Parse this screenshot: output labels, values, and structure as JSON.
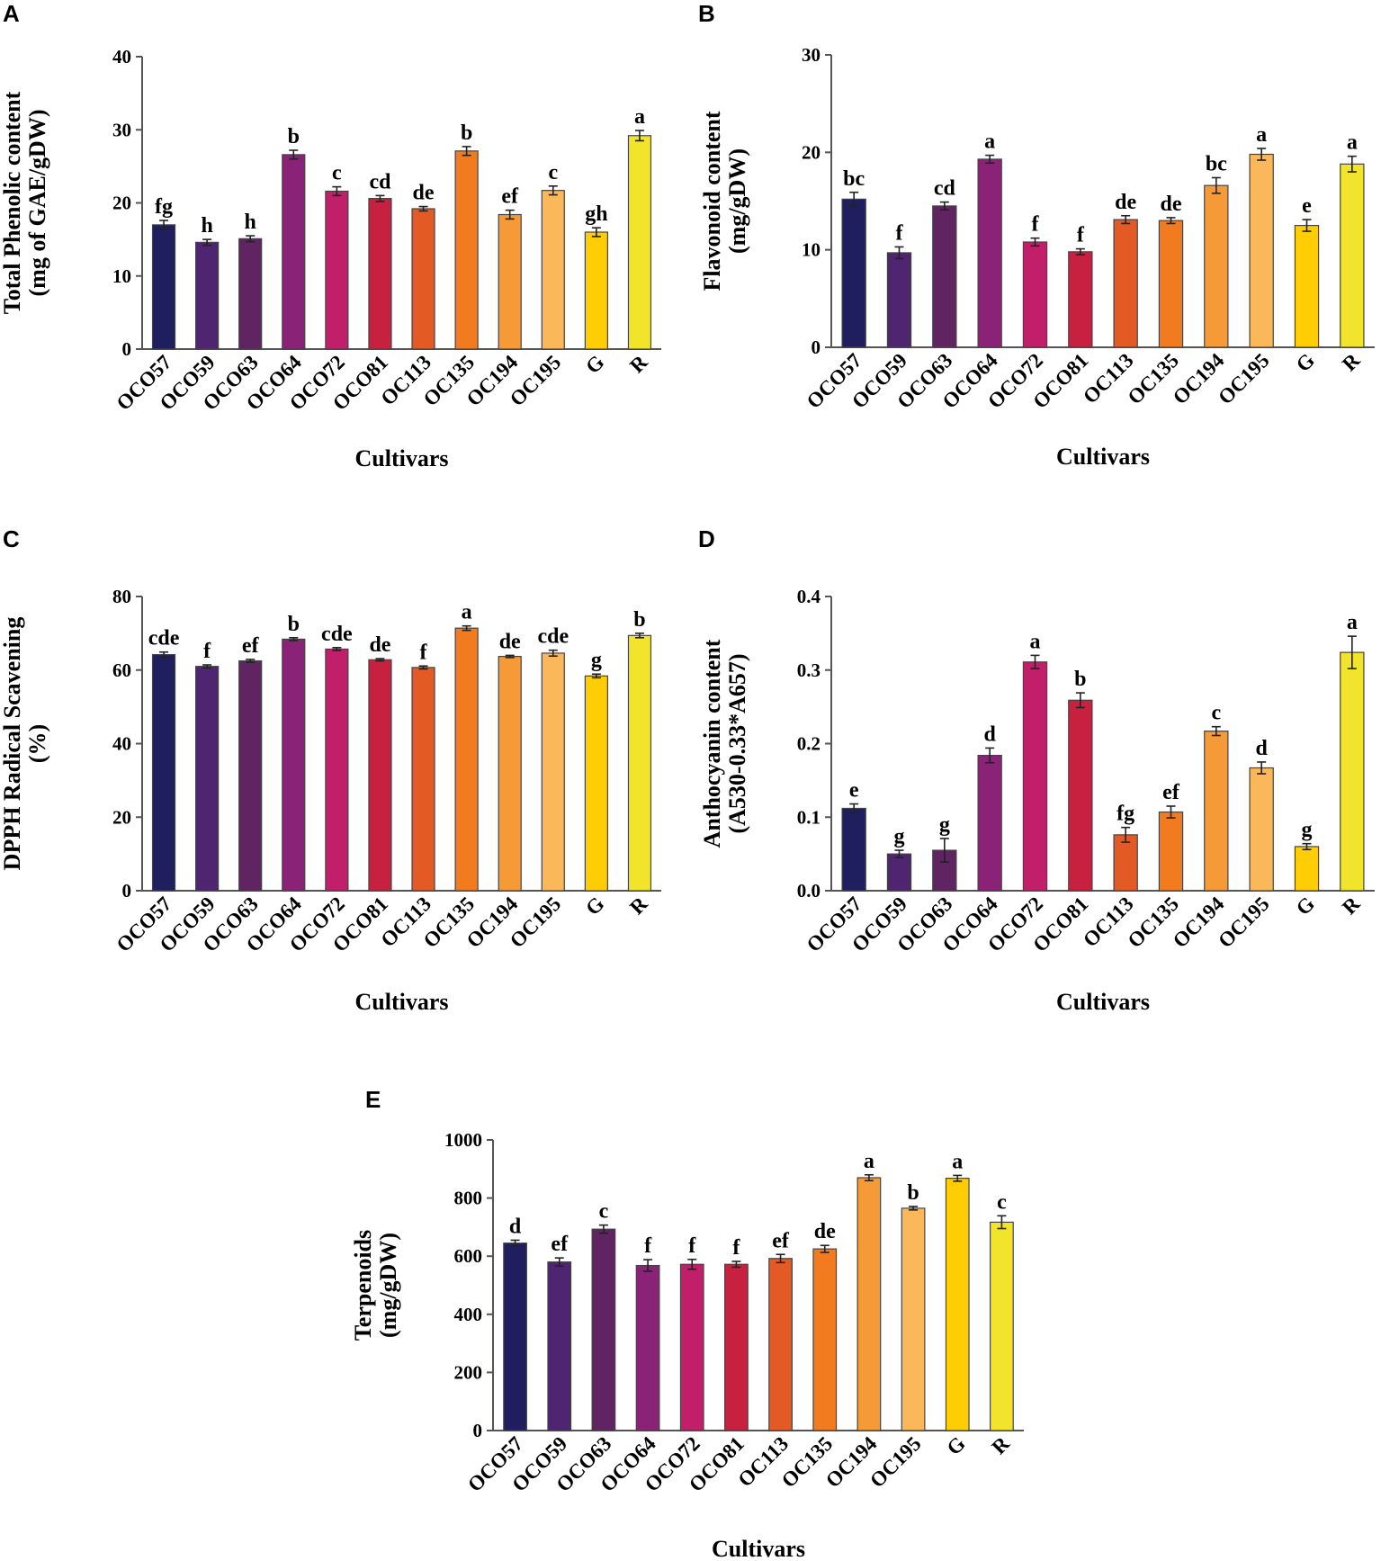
{
  "colors": [
    "#1f1f5f",
    "#4f2470",
    "#5f2461",
    "#8a2378",
    "#c21f6b",
    "#c7213f",
    "#e45a24",
    "#f27b20",
    "#f69a38",
    "#fbb85a",
    "#ffcd03",
    "#f2e42b"
  ],
  "chart_data": [
    {
      "panel": "A",
      "type": "bar",
      "categories": [
        "OCO57",
        "OCO59",
        "OCO63",
        "OCO64",
        "OCO72",
        "OCO81",
        "OC113",
        "OC135",
        "OC194",
        "OC195",
        "G",
        "R"
      ],
      "values": [
        17.0,
        14.6,
        15.1,
        26.6,
        21.6,
        20.6,
        19.2,
        27.1,
        18.4,
        21.7,
        16.0,
        29.2
      ],
      "errors": [
        0.6,
        0.4,
        0.4,
        0.6,
        0.6,
        0.4,
        0.3,
        0.6,
        0.6,
        0.6,
        0.6,
        0.7
      ],
      "letters": [
        "fg",
        "h",
        "h",
        "b",
        "c",
        "cd",
        "de",
        "b",
        "ef",
        "c",
        "gh",
        "a"
      ],
      "ylabel_line1": "Total Phenolic content",
      "ylabel_line2": "(mg of GAE/gDW)",
      "xlabel": "Cultivars",
      "ylim": [
        0,
        40
      ],
      "yticks": [
        "0",
        "10",
        "20",
        "30",
        "40"
      ]
    },
    {
      "panel": "B",
      "type": "bar",
      "categories": [
        "OCO57",
        "OCO59",
        "OCO63",
        "OCO64",
        "OCO72",
        "OCO81",
        "OC113",
        "OC135",
        "OC194",
        "OC195",
        "G",
        "R"
      ],
      "values": [
        15.2,
        9.7,
        14.5,
        19.3,
        10.8,
        9.8,
        13.1,
        13.0,
        16.6,
        19.8,
        12.5,
        18.8
      ],
      "errors": [
        0.7,
        0.6,
        0.4,
        0.4,
        0.4,
        0.3,
        0.4,
        0.3,
        0.8,
        0.6,
        0.6,
        0.8
      ],
      "letters": [
        "bc",
        "f",
        "cd",
        "a",
        "f",
        "f",
        "de",
        "de",
        "bc",
        "a",
        "e",
        "a"
      ],
      "ylabel_line1": "Flavonoid content",
      "ylabel_line2": "(mg/gDW)",
      "xlabel": "Cultivars",
      "ylim": [
        0,
        30
      ],
      "yticks": [
        "0",
        "10",
        "20",
        "30"
      ]
    },
    {
      "panel": "C",
      "type": "bar",
      "categories": [
        "OCO57",
        "OCO59",
        "OCO63",
        "OCO64",
        "OCO72",
        "OCO81",
        "OC113",
        "OC135",
        "OC194",
        "OC195",
        "G",
        "R"
      ],
      "values": [
        64.2,
        61.0,
        62.5,
        68.4,
        65.7,
        62.8,
        60.7,
        71.4,
        63.7,
        64.6,
        58.4,
        69.4
      ],
      "errors": [
        0.7,
        0.4,
        0.4,
        0.4,
        0.4,
        0.3,
        0.4,
        0.6,
        0.3,
        0.8,
        0.5,
        0.6
      ],
      "letters": [
        "cde",
        "f",
        "ef",
        "b",
        "cde",
        "de",
        "f",
        "a",
        "de",
        "cde",
        "g",
        "b"
      ],
      "ylabel_line1": "DPPH Radical Scavening",
      "ylabel_line2": "(%)",
      "xlabel": "Cultivars",
      "ylim": [
        0,
        80
      ],
      "yticks": [
        "0",
        "20",
        "40",
        "60",
        "80"
      ]
    },
    {
      "panel": "D",
      "type": "bar",
      "categories": [
        "OCO57",
        "OCO59",
        "OCO63",
        "OCO64",
        "OCO72",
        "OCO81",
        "OC113",
        "OC135",
        "OC194",
        "OC195",
        "G",
        "R"
      ],
      "values": [
        0.112,
        0.05,
        0.055,
        0.184,
        0.311,
        0.259,
        0.076,
        0.107,
        0.217,
        0.167,
        0.06,
        0.324
      ],
      "errors": [
        0.006,
        0.005,
        0.016,
        0.01,
        0.009,
        0.01,
        0.01,
        0.008,
        0.006,
        0.008,
        0.004,
        0.022
      ],
      "letters": [
        "e",
        "g",
        "g",
        "d",
        "a",
        "b",
        "fg",
        "ef",
        "c",
        "d",
        "g",
        "a"
      ],
      "ylabel_line1": "Anthocyanin content",
      "ylabel_line2": "(A530-0.33*A657)",
      "xlabel": "Cultivars",
      "ylim": [
        0,
        0.4
      ],
      "yticks": [
        "0.0",
        "0.1",
        "0.2",
        "0.3",
        "0.4"
      ]
    },
    {
      "panel": "E",
      "type": "bar",
      "categories": [
        "OCO57",
        "OCO59",
        "OCO63",
        "OCO64",
        "OCO72",
        "OCO81",
        "OC113",
        "OC135",
        "OC194",
        "OC195",
        "G",
        "R"
      ],
      "values": [
        645,
        580,
        693,
        568,
        572,
        572,
        592,
        625,
        870,
        765,
        868,
        717
      ],
      "errors": [
        10,
        14,
        14,
        20,
        17,
        10,
        14,
        12,
        10,
        6,
        10,
        22
      ],
      "letters": [
        "d",
        "ef",
        "c",
        "f",
        "f",
        "f",
        "ef",
        "de",
        "a",
        "b",
        "a",
        "c"
      ],
      "ylabel_line1": "Terpenoids",
      "ylabel_line2": "(mg/gDW)",
      "xlabel": "Cultivars",
      "ylim": [
        0,
        1000
      ],
      "yticks": [
        "0",
        "200",
        "400",
        "600",
        "800",
        "1000"
      ]
    }
  ]
}
